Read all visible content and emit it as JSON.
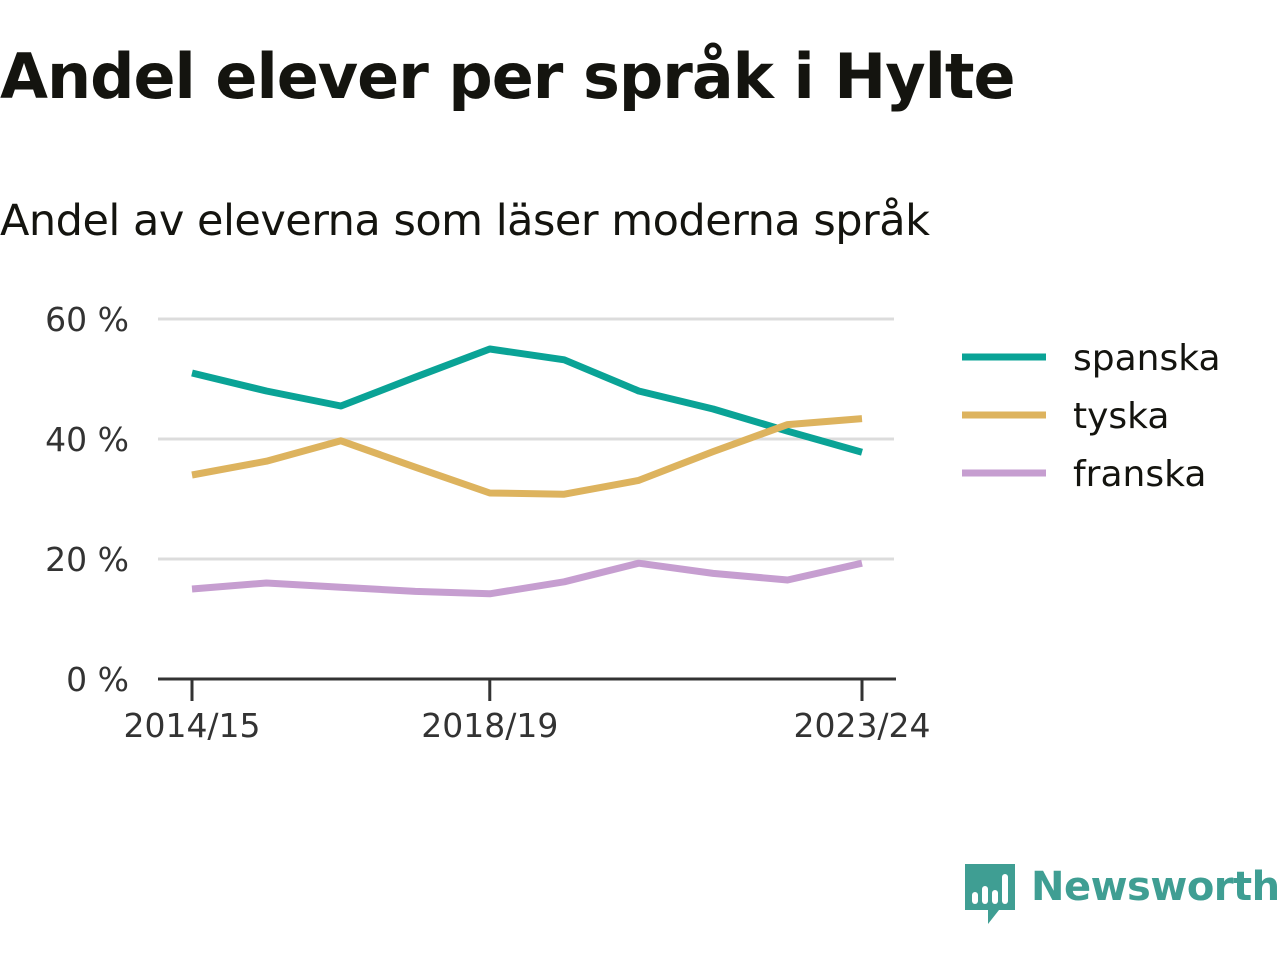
{
  "title": "Andel elever per språk i Hylte",
  "subtitle": "Andel av eleverna som läser moderna språk",
  "brand": {
    "name": "Newsworthy",
    "color": "#3f9e93",
    "icon": "newsworthy-logo-icon"
  },
  "chart_data": {
    "type": "line",
    "x": [
      "2014/15",
      "2015/16",
      "2016/17",
      "2017/18",
      "2018/19",
      "2019/20",
      "2020/21",
      "2021/22",
      "2022/23",
      "2023/24"
    ],
    "x_tick_labels": [
      "2014/15",
      "2018/19",
      "2023/24"
    ],
    "y_ticks": [
      0,
      20,
      40,
      60
    ],
    "y_tick_labels": [
      "0 %",
      "20 %",
      "40 %",
      "60 %"
    ],
    "ylim": [
      0,
      60
    ],
    "grid": true,
    "legend_position": "right",
    "series": [
      {
        "name": "spanska",
        "color": "#0aa396",
        "values": [
          51,
          48,
          45.5,
          50.3,
          55,
          53.2,
          48,
          45,
          41.3,
          37.8
        ]
      },
      {
        "name": "tyska",
        "color": "#ddb35e",
        "values": [
          34,
          36.3,
          39.7,
          35.3,
          31,
          30.8,
          33.1,
          37.9,
          42.4,
          43.4
        ]
      },
      {
        "name": "franska",
        "color": "#c69ed0",
        "values": [
          15,
          16,
          15.3,
          14.6,
          14.2,
          16.2,
          19.3,
          17.6,
          16.5,
          19.3
        ]
      }
    ]
  }
}
